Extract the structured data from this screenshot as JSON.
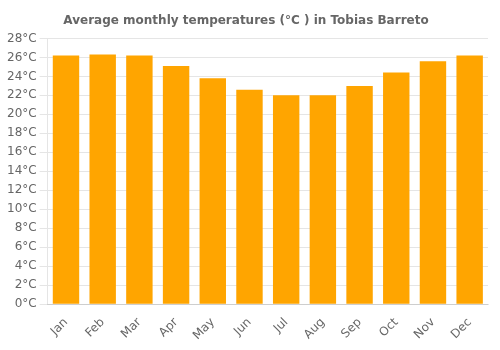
{
  "chart_data": {
    "type": "bar",
    "title": "Average monthly temperatures (°C ) in Tobias Barreto",
    "categories": [
      "Jan",
      "Feb",
      "Mar",
      "Apr",
      "May",
      "Jun",
      "Jul",
      "Aug",
      "Sep",
      "Oct",
      "Nov",
      "Dec"
    ],
    "values": [
      26.2,
      26.3,
      26.2,
      25.1,
      23.8,
      22.6,
      22.0,
      22.0,
      23.0,
      24.4,
      25.6,
      26.2
    ],
    "color": "#FFA500",
    "ylim": [
      0,
      28
    ],
    "yticks": [
      {
        "value": 0,
        "label": "0°C"
      },
      {
        "value": 2,
        "label": "2°C"
      },
      {
        "value": 4,
        "label": "4°C"
      },
      {
        "value": 6,
        "label": "6°C"
      },
      {
        "value": 8,
        "label": "8°C"
      },
      {
        "value": 10,
        "label": "10°C"
      },
      {
        "value": 12,
        "label": "12°C"
      },
      {
        "value": 14,
        "label": "14°C"
      },
      {
        "value": 16,
        "label": "16°C"
      },
      {
        "value": 18,
        "label": "18°C"
      },
      {
        "value": 20,
        "label": "20°C"
      },
      {
        "value": 22,
        "label": "22°C"
      },
      {
        "value": 24,
        "label": "24°C"
      },
      {
        "value": 26,
        "label": "26°C"
      },
      {
        "value": 28,
        "label": "28°C"
      }
    ],
    "grid": true
  }
}
